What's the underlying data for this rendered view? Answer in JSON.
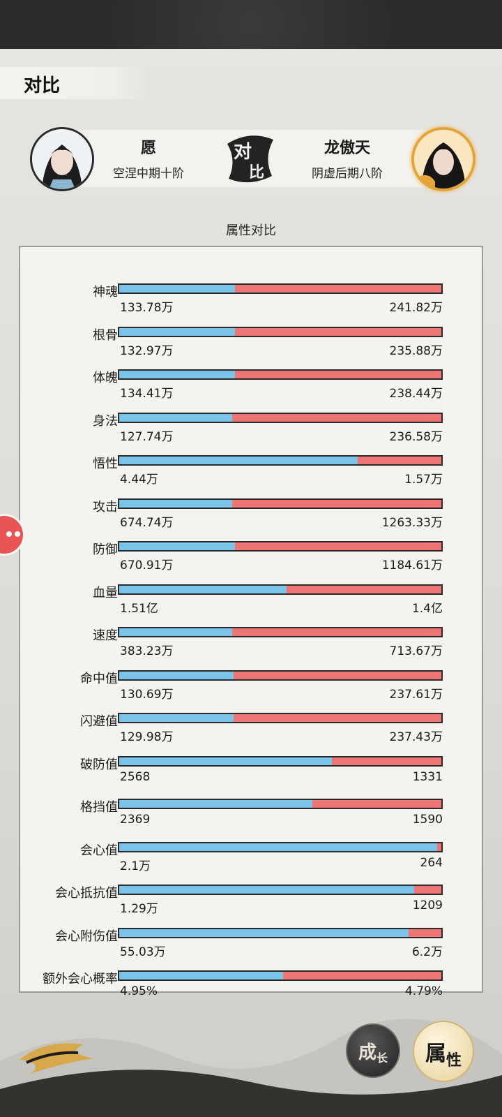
{
  "header": {
    "title": "对比"
  },
  "players": {
    "left": {
      "name": "愿",
      "realm": "空涅中期十阶"
    },
    "right": {
      "name": "龙傲天",
      "realm": "阴虚后期八阶"
    },
    "vs_label_top": "对",
    "vs_label_bottom": "比"
  },
  "section": {
    "title": "属性对比"
  },
  "colors": {
    "left_bar": "#7ac4ea",
    "right_bar": "#ef7575"
  },
  "stats": [
    {
      "label": "神魂",
      "left": "133.78万",
      "right": "241.82万",
      "left_share": 0.36
    },
    {
      "label": "根骨",
      "left": "132.97万",
      "right": "235.88万",
      "left_share": 0.36
    },
    {
      "label": "体魄",
      "left": "134.41万",
      "right": "238.44万",
      "left_share": 0.36
    },
    {
      "label": "身法",
      "left": "127.74万",
      "right": "236.58万",
      "left_share": 0.35
    },
    {
      "label": "悟性",
      "left": "4.44万",
      "right": "1.57万",
      "left_share": 0.74
    },
    {
      "label": "攻击",
      "left": "674.74万",
      "right": "1263.33万",
      "left_share": 0.35
    },
    {
      "label": "防御",
      "left": "670.91万",
      "right": "1184.61万",
      "left_share": 0.36
    },
    {
      "label": "血量",
      "left": "1.51亿",
      "right": "1.4亿",
      "left_share": 0.52
    },
    {
      "label": "速度",
      "left": "383.23万",
      "right": "713.67万",
      "left_share": 0.35
    },
    {
      "label": "命中值",
      "left": "130.69万",
      "right": "237.61万",
      "left_share": 0.355
    },
    {
      "label": "闪避值",
      "left": "129.98万",
      "right": "237.43万",
      "left_share": 0.355
    },
    {
      "label": "破防值",
      "left": "2568",
      "right": "1331",
      "left_share": 0.66
    },
    {
      "label": "格挡值",
      "left": "2369",
      "right": "1590",
      "left_share": 0.6
    },
    {
      "label": "会心值",
      "left": "2.1万",
      "right": "264",
      "left_share": 0.988
    },
    {
      "label": "会心抵抗值",
      "left": "1.29万",
      "right": "1209",
      "left_share": 0.915
    },
    {
      "label": "会心附伤值",
      "left": "55.03万",
      "right": "6.2万",
      "left_share": 0.898
    },
    {
      "label": "额外会心概率",
      "left": "4.95%",
      "right": "4.79%",
      "left_share": 0.508
    }
  ],
  "nav": {
    "growth_a": "成",
    "growth_b": "长",
    "attr_a": "属",
    "attr_b": "性"
  }
}
